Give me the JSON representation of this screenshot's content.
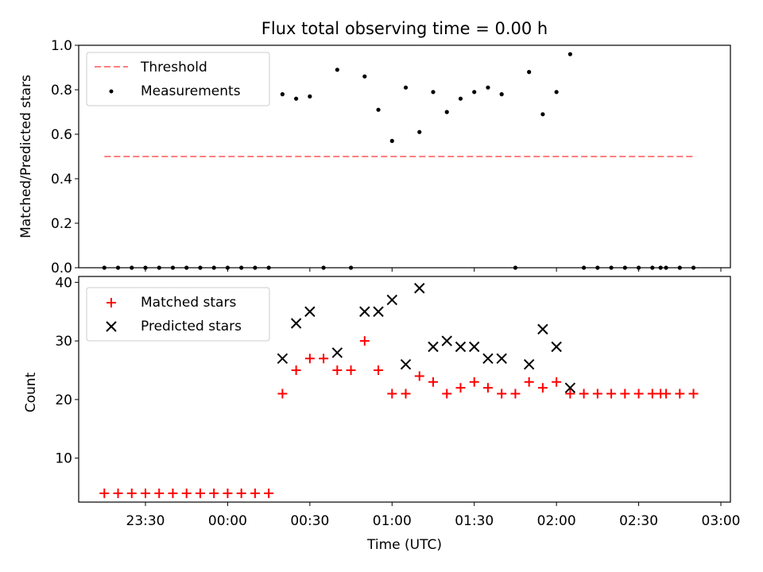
{
  "chart_data": [
    {
      "type": "scatter",
      "title": "Flux total observing time = 0.00 h",
      "xlabel": "",
      "ylabel": "Matched/Predicted stars",
      "ylim": [
        0,
        1.0
      ],
      "yticks": [
        "0.0",
        "0.2",
        "0.4",
        "0.6",
        "0.8",
        "1.0"
      ],
      "grid": false,
      "legend_position": "upper-left",
      "threshold": {
        "name": "Threshold",
        "y": 0.5,
        "color": "#ff7f7f",
        "x_range": [
          "23:15",
          "02:50"
        ]
      },
      "series": [
        {
          "name": "Measurements",
          "color": "#000000",
          "x": [
            "23:15",
            "23:20",
            "23:25",
            "23:30",
            "23:35",
            "23:40",
            "23:45",
            "23:50",
            "23:55",
            "00:00",
            "00:05",
            "00:10",
            "00:15",
            "00:20",
            "00:25",
            "00:30",
            "00:35",
            "00:40",
            "00:45",
            "00:50",
            "00:55",
            "01:00",
            "01:05",
            "01:10",
            "01:15",
            "01:20",
            "01:25",
            "01:30",
            "01:35",
            "01:40",
            "01:45",
            "01:50",
            "01:55",
            "02:00",
            "02:05",
            "02:10",
            "02:15",
            "02:20",
            "02:25",
            "02:30",
            "02:35",
            "02:38",
            "02:40",
            "02:45",
            "02:50"
          ],
          "values": [
            0,
            0,
            0,
            0,
            0,
            0,
            0,
            0,
            0,
            0,
            0,
            0,
            0,
            0.78,
            0.76,
            0.77,
            0,
            0.89,
            0,
            0.86,
            0.71,
            0.57,
            0.81,
            0.61,
            0.79,
            0.7,
            0.76,
            0.79,
            0.81,
            0.78,
            0,
            0.88,
            0.69,
            0.79,
            0.96,
            0,
            0,
            0,
            0,
            0,
            0,
            0,
            0,
            0,
            0
          ]
        }
      ]
    },
    {
      "type": "scatter",
      "title": "",
      "xlabel": "Time (UTC)",
      "ylabel": "Count",
      "ylim": [
        2.5,
        41
      ],
      "yticks": [
        "10",
        "20",
        "30",
        "40"
      ],
      "xticks": [
        "23:30",
        "00:00",
        "00:30",
        "01:00",
        "01:30",
        "02:00",
        "02:30",
        "03:00"
      ],
      "x_axis_start": "23:15",
      "grid": false,
      "legend_position": "upper-left",
      "series": [
        {
          "name": "Matched stars",
          "marker": "plus",
          "color": "#ff0000",
          "x": [
            "23:15",
            "23:20",
            "23:25",
            "23:30",
            "23:35",
            "23:40",
            "23:45",
            "23:50",
            "23:55",
            "00:00",
            "00:05",
            "00:10",
            "00:15",
            "00:20",
            "00:25",
            "00:30",
            "00:35",
            "00:40",
            "00:45",
            "00:50",
            "00:55",
            "01:00",
            "01:05",
            "01:10",
            "01:15",
            "01:20",
            "01:25",
            "01:30",
            "01:35",
            "01:40",
            "01:45",
            "01:50",
            "01:55",
            "02:00",
            "02:05",
            "02:10",
            "02:15",
            "02:20",
            "02:25",
            "02:30",
            "02:35",
            "02:38",
            "02:40",
            "02:45",
            "02:50"
          ],
          "values": [
            4,
            4,
            4,
            4,
            4,
            4,
            4,
            4,
            4,
            4,
            4,
            4,
            4,
            21,
            25,
            27,
            27,
            25,
            25,
            30,
            25,
            21,
            21,
            24,
            23,
            21,
            22,
            23,
            22,
            21,
            21,
            23,
            22,
            23,
            21,
            21,
            21,
            21,
            21,
            21,
            21,
            21,
            21,
            21,
            21
          ]
        },
        {
          "name": "Predicted stars",
          "marker": "x",
          "color": "#000000",
          "x": [
            "00:20",
            "00:25",
            "00:30",
            "00:40",
            "00:50",
            "00:55",
            "01:00",
            "01:05",
            "01:10",
            "01:15",
            "01:20",
            "01:25",
            "01:30",
            "01:35",
            "01:40",
            "01:50",
            "01:55",
            "02:00",
            "02:05"
          ],
          "values": [
            27,
            33,
            35,
            28,
            35,
            35,
            37,
            26,
            39,
            29,
            30,
            29,
            29,
            27,
            27,
            26,
            32,
            29,
            22
          ]
        }
      ]
    }
  ]
}
